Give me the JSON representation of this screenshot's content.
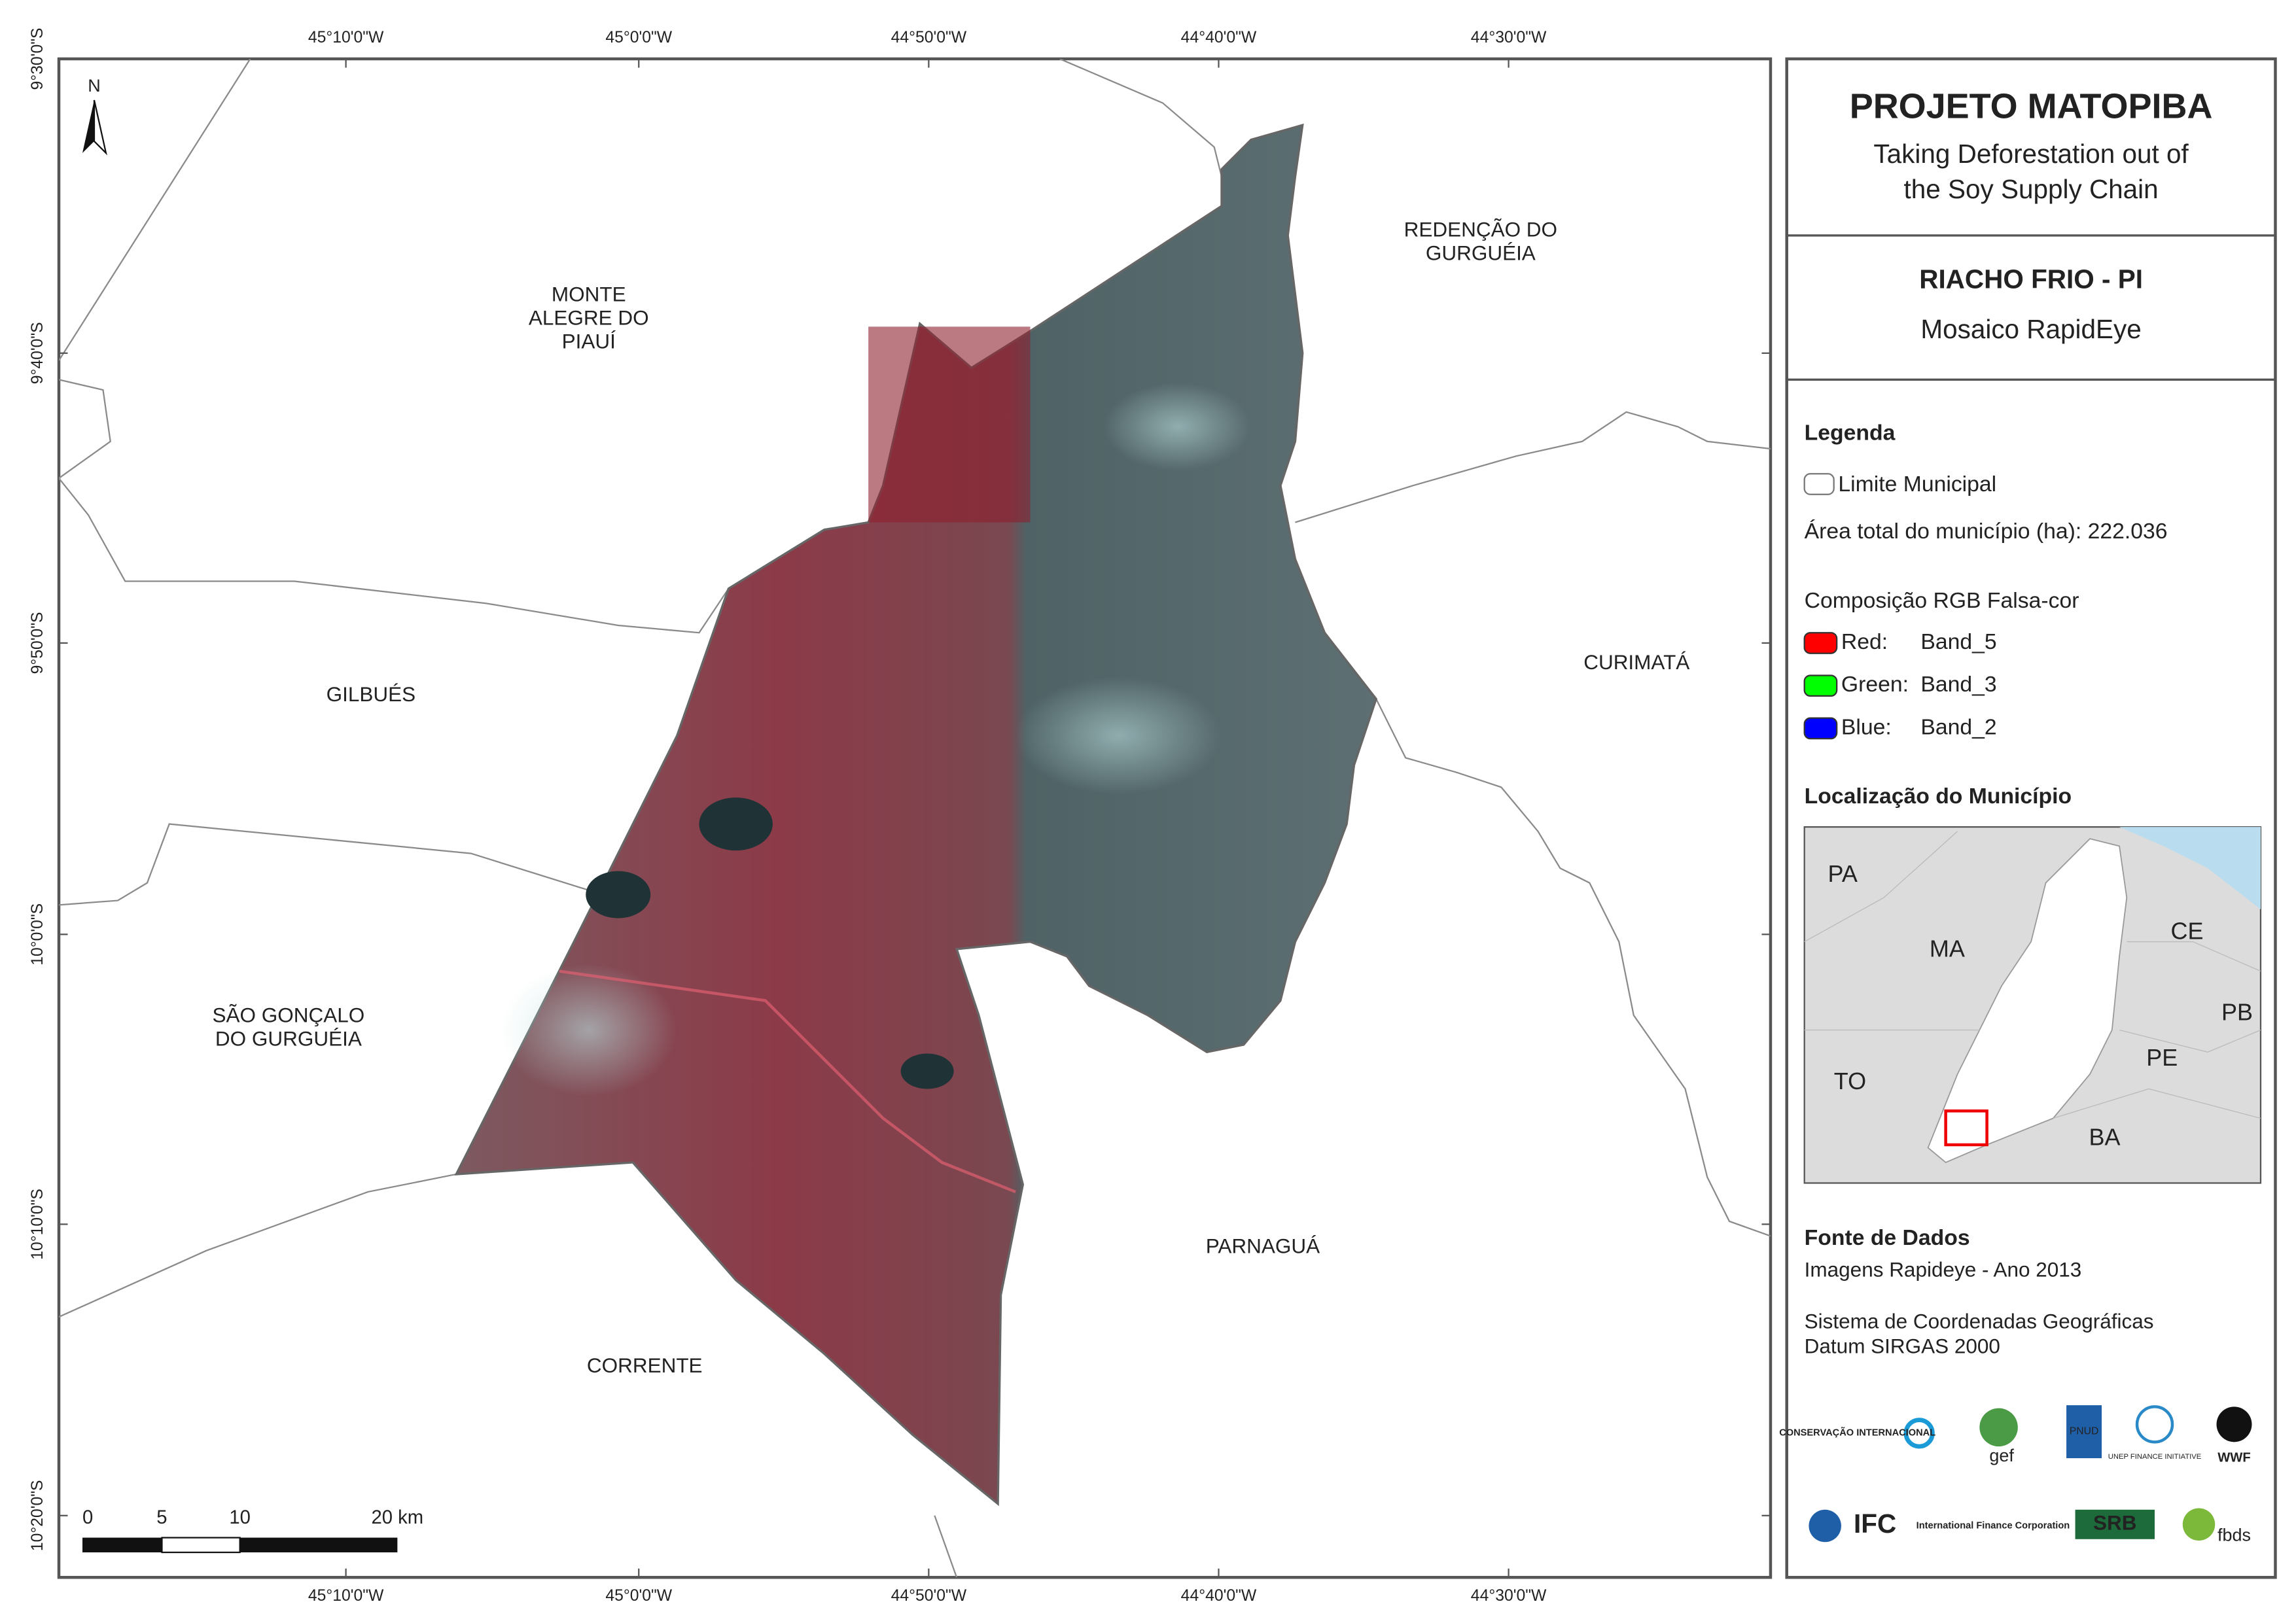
{
  "map": {
    "lon_labels": [
      "45°10'0\"W",
      "45°0'0\"W",
      "44°50'0\"W",
      "44°40'0\"W",
      "44°30'0\"W"
    ],
    "lat_labels": [
      "9°30'0\"S",
      "9°40'0\"S",
      "9°50'0\"S",
      "10°0'0\"S",
      "10°10'0\"S",
      "10°20'0\"S"
    ],
    "north": "N",
    "places": [
      [
        "MONTE",
        "ALEGRE DO",
        "PIAUÍ"
      ],
      [
        "REDENÇÃO DO",
        "GURGUÉIA"
      ],
      [
        "GILBUÉS"
      ],
      [
        "CURIMATÁ"
      ],
      [
        "SÃO GONÇALO",
        "DO GURGUÉIA"
      ],
      [
        "PARNAGUÁ"
      ],
      [
        "CORRENTE"
      ]
    ],
    "scale_labels": [
      "0",
      "5",
      "10",
      "20 km"
    ]
  },
  "panel": {
    "title": "PROJETO MATOPIBA",
    "subtitle": [
      "Taking Deforestation out of",
      "the Soy Supply Chain"
    ],
    "area_name": "RIACHO FRIO - PI",
    "area_subtitle": "Mosaico RapidEye",
    "legend": {
      "heading": "Legenda",
      "boundary": "Limite Municipal",
      "area_total": "Área total do município (ha): 222.036",
      "rgb_heading": "Composição RGB Falsa-cor",
      "bands": [
        {
          "label": "Red:",
          "band": "Band_5",
          "color": "#ff0000"
        },
        {
          "label": "Green:",
          "band": "Band_3",
          "color": "#00ff00"
        },
        {
          "label": "Blue:",
          "band": "Band_2",
          "color": "#0000ff"
        }
      ]
    },
    "location": {
      "heading": "Localização do Município",
      "states": [
        "PA",
        "MA",
        "CE",
        "PB",
        "TO",
        "PE",
        "BA"
      ]
    },
    "sources": {
      "heading": "Fonte de Dados",
      "lines": [
        "Imagens Rapideye - Ano 2013",
        "Sistema de Coordenadas Geográficas",
        "Datum SIRGAS 2000"
      ]
    },
    "logos": [
      "CONSERVAÇÃO INTERNACIONAL",
      "gef",
      "PNUD",
      "UNEP FINANCE INITIATIVE",
      "WWF",
      "IFC",
      "International Finance Corporation",
      "SRB",
      "fbds"
    ]
  }
}
